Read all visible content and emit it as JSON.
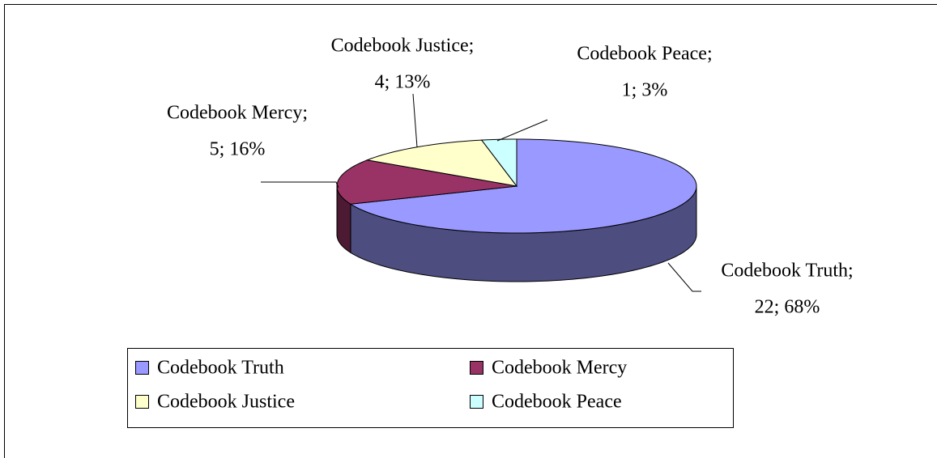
{
  "chart_data": {
    "type": "pie3d",
    "categories": [
      "Codebook Truth",
      "Codebook Mercy",
      "Codebook Justice",
      "Codebook Peace"
    ],
    "values": [
      22,
      5,
      4,
      1
    ],
    "label_names": [
      "Codebook Truth;",
      "Codebook Mercy;",
      "Codebook Justice;",
      "Codebook Peace;"
    ],
    "value_labels": [
      "22; 68%",
      "5; 16%",
      "4; 13%",
      "1; 3%"
    ],
    "colors": [
      "#9999ff",
      "#993366",
      "#ffffcc",
      "#ccffff"
    ],
    "side_colors": [
      "#4d4d80",
      "#4d1a33",
      "#80806a",
      "#6a8080"
    ],
    "legend": "bottom"
  }
}
